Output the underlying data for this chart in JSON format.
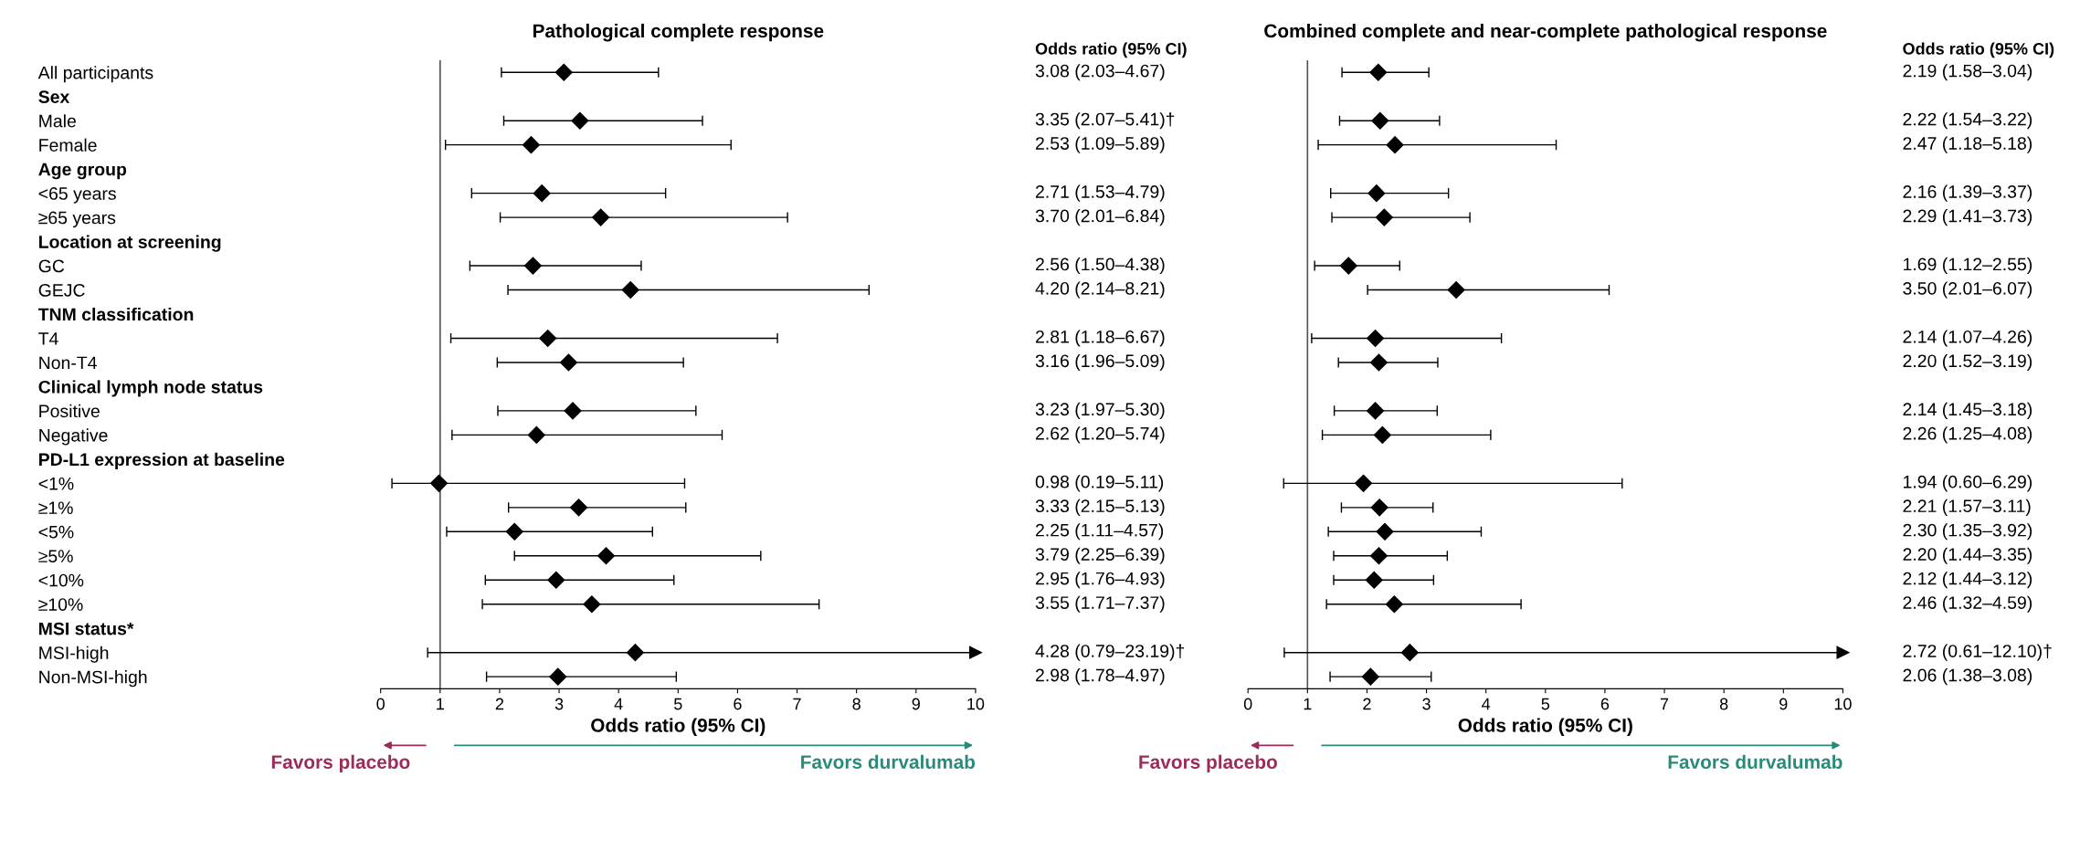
{
  "chart_data": [
    {
      "type": "scatter",
      "orientation": "horizontal",
      "title": "Pathological complete response",
      "xlabel": "Odds ratio (95% CI)",
      "categories": [
        "All participants",
        "Sex",
        "Male",
        "Female",
        "Age group",
        "<65 years",
        "≥65 years",
        "Location at screening",
        "GC",
        "GEJC",
        "TNM classification",
        "T4",
        "Non-T4",
        "Clinical lymph node status",
        "Positive",
        "Negative",
        "PD-L1 expression at baseline",
        "<1%",
        "≥1%",
        "<5%",
        "≥5%",
        "<10%",
        "≥10%",
        "MSI status*",
        "MSI-high",
        "Non-MSI-high"
      ],
      "series": [
        {
          "color": "#000000",
          "values": [
            3.08,
            null,
            3.35,
            2.53,
            null,
            2.71,
            3.7,
            null,
            2.56,
            4.2,
            null,
            2.81,
            3.16,
            null,
            3.23,
            2.62,
            null,
            0.98,
            3.33,
            2.25,
            3.79,
            2.95,
            3.55,
            null,
            4.28,
            2.98
          ],
          "errors": [
            [
              2.03,
              4.67
            ],
            null,
            [
              2.07,
              5.41
            ],
            [
              1.09,
              5.89
            ],
            null,
            [
              1.53,
              4.79
            ],
            [
              2.01,
              6.84
            ],
            null,
            [
              1.5,
              4.38
            ],
            [
              2.14,
              8.21
            ],
            null,
            [
              1.18,
              6.67
            ],
            [
              1.96,
              5.09
            ],
            null,
            [
              1.97,
              5.3
            ],
            [
              1.2,
              5.74
            ],
            null,
            [
              0.19,
              5.11
            ],
            [
              2.15,
              5.13
            ],
            [
              1.11,
              4.57
            ],
            [
              2.25,
              6.39
            ],
            [
              1.76,
              4.93
            ],
            [
              1.71,
              7.37
            ],
            null,
            [
              0.79,
              23.19
            ],
            [
              1.78,
              4.97
            ]
          ]
        }
      ],
      "xlim": [
        0,
        10
      ],
      "xticks": [
        0,
        1,
        2,
        3,
        4,
        5,
        6,
        7,
        8,
        9,
        10
      ],
      "marker": "diamond",
      "grid": false,
      "legend": false,
      "ref_lines": [
        {
          "axis": "x",
          "value": 1
        }
      ],
      "annotations": [
        "Odds ratio (95% CI)",
        "Favors placebo",
        "Favors durvalumab",
        "3.08 (2.03–4.67)",
        "3.35 (2.07–5.41)†",
        "2.53 (1.09–5.89)",
        "2.71 (1.53–4.79)",
        "3.70 (2.01–6.84)",
        "2.56 (1.50–4.38)",
        "4.20 (2.14–8.21)",
        "2.81 (1.18–6.67)",
        "3.16 (1.96–5.09)",
        "3.23 (1.97–5.30)",
        "2.62 (1.20–5.74)",
        "0.98 (0.19–5.11)",
        "3.33 (2.15–5.13)",
        "2.25 (1.11–4.57)",
        "3.79 (2.25–6.39)",
        "2.95 (1.76–4.93)",
        "3.55 (1.71–7.37)",
        "4.28 (0.79–23.19)†",
        "2.98 (1.78–4.97)"
      ]
    },
    {
      "type": "scatter",
      "orientation": "horizontal",
      "title": "Combined complete and near-complete pathological response",
      "xlabel": "Odds ratio (95% CI)",
      "categories": [
        null,
        null,
        null,
        null,
        null,
        null,
        null,
        null,
        null,
        null,
        null,
        null,
        null,
        null,
        null,
        null,
        null,
        null,
        null,
        null,
        null,
        null,
        null,
        null,
        null,
        null
      ],
      "series": [
        {
          "color": "#000000",
          "values": [
            2.19,
            null,
            2.22,
            2.47,
            null,
            2.16,
            2.29,
            null,
            1.69,
            3.5,
            null,
            2.14,
            2.2,
            null,
            2.14,
            2.26,
            null,
            1.94,
            2.21,
            2.3,
            2.2,
            2.12,
            2.46,
            null,
            2.72,
            2.06
          ],
          "errors": [
            [
              1.58,
              3.04
            ],
            null,
            [
              1.54,
              3.22
            ],
            [
              1.18,
              5.18
            ],
            null,
            [
              1.39,
              3.37
            ],
            [
              1.41,
              3.73
            ],
            null,
            [
              1.12,
              2.55
            ],
            [
              2.01,
              6.07
            ],
            null,
            [
              1.07,
              4.26
            ],
            [
              1.52,
              3.19
            ],
            null,
            [
              1.45,
              3.18
            ],
            [
              1.25,
              4.08
            ],
            null,
            [
              0.6,
              6.29
            ],
            [
              1.57,
              3.11
            ],
            [
              1.35,
              3.92
            ],
            [
              1.44,
              3.35
            ],
            [
              1.44,
              3.12
            ],
            [
              1.32,
              4.59
            ],
            null,
            [
              0.61,
              12.1
            ],
            [
              1.38,
              3.08
            ]
          ]
        }
      ],
      "xlim": [
        0,
        10
      ],
      "xticks": [
        0,
        1,
        2,
        3,
        4,
        5,
        6,
        7,
        8,
        9,
        10
      ],
      "marker": "diamond",
      "grid": false,
      "legend": false,
      "tick_labels": "x",
      "ref_lines": [
        {
          "axis": "x",
          "value": 1
        }
      ],
      "annotations": [
        "Odds ratio (95% CI)",
        "Favors placebo",
        "Favors durvalumab",
        "2.19 (1.58–3.04)",
        "2.22 (1.54–3.22)",
        "2.47 (1.18–5.18)",
        "2.16 (1.39–3.37)",
        "2.29 (1.41–3.73)",
        "1.69 (1.12–2.55)",
        "3.50 (2.01–6.07)",
        "2.14 (1.07–4.26)",
        "2.20 (1.52–3.19)",
        "2.14 (1.45–3.18)",
        "2.26 (1.25–4.08)",
        "1.94 (0.60–6.29)",
        "2.21 (1.57–3.11)",
        "2.30 (1.35–3.92)",
        "2.20 (1.44–3.35)",
        "2.12 (1.44–3.12)",
        "2.46 (1.32–4.59)",
        "2.72 (0.61–12.10)†",
        "2.06 (1.38–3.08)"
      ]
    }
  ]
}
